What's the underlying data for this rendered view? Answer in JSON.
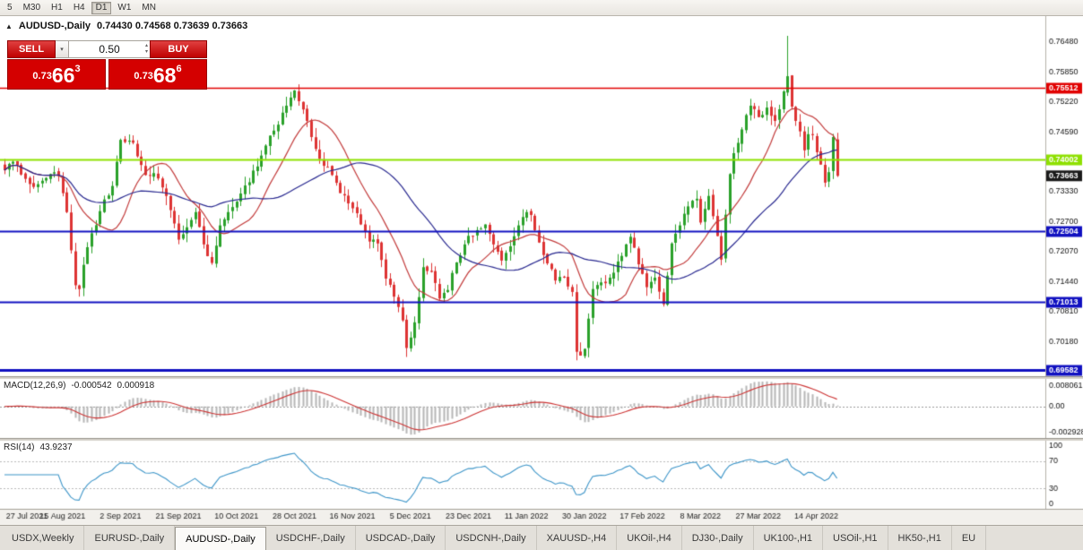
{
  "toolbar": {
    "timeframes": [
      "5",
      "M30",
      "H1",
      "H4",
      "D1",
      "W1",
      "MN"
    ],
    "active": "D1"
  },
  "chart": {
    "collapse_icon": "▲",
    "title": "AUDUSD-,Daily",
    "ohlc_text": "0.74430 0.74568 0.73639 0.73663",
    "one_click": {
      "sell_label": "SELL",
      "buy_label": "BUY",
      "volume": "0.50",
      "dropdown_icon": "▾",
      "spin_up_icon": "▴",
      "spin_down_icon": "▾",
      "sell_price": {
        "prefix": "0.73",
        "big": "66",
        "sup": "3"
      },
      "buy_price": {
        "prefix": "0.73",
        "big": "68",
        "sup": "6"
      }
    },
    "macd": {
      "title": "MACD(12,26,9)",
      "value_main": "-0.000542",
      "value_signal": "0.000918"
    },
    "rsi": {
      "title": "RSI(14)",
      "value": "43.9237"
    }
  },
  "tabs": {
    "active_index": 2,
    "items": [
      "USDX,Weekly",
      "EURUSD-,Daily",
      "AUDUSD-,Daily",
      "USDCHF-,Daily",
      "USDCAD-,Daily",
      "USDCNH-,Daily",
      "XAUUSD-,H4",
      "UKOil-,H4",
      "DJ30-,Daily",
      "UK100-,H1",
      "USOil-,H1",
      "HK50-,H1",
      "EU"
    ]
  },
  "chart_data": {
    "type": "candlestick",
    "symbol": "AUDUSD",
    "timeframe": "Daily",
    "n_candles": 202,
    "ohlc_display": {
      "open": "0.74430",
      "high": "0.74568",
      "low": "0.73639",
      "close": "0.73663"
    },
    "close_waypoints": [
      [
        0,
        0.7378
      ],
      [
        2,
        0.7396
      ],
      [
        5,
        0.736
      ],
      [
        7,
        0.7343
      ],
      [
        9,
        0.7356
      ],
      [
        11,
        0.737
      ],
      [
        13,
        0.7366
      ],
      [
        15,
        0.729
      ],
      [
        17,
        0.7136
      ],
      [
        18,
        0.7128
      ],
      [
        20,
        0.7216
      ],
      [
        23,
        0.7292
      ],
      [
        26,
        0.7345
      ],
      [
        28,
        0.7442
      ],
      [
        31,
        0.7436
      ],
      [
        34,
        0.7368
      ],
      [
        36,
        0.7372
      ],
      [
        39,
        0.7324
      ],
      [
        41,
        0.7266
      ],
      [
        42,
        0.7232
      ],
      [
        44,
        0.7258
      ],
      [
        46,
        0.729
      ],
      [
        48,
        0.7222
      ],
      [
        50,
        0.7183
      ],
      [
        52,
        0.7262
      ],
      [
        54,
        0.729
      ],
      [
        56,
        0.7312
      ],
      [
        58,
        0.7346
      ],
      [
        61,
        0.7386
      ],
      [
        63,
        0.743
      ],
      [
        66,
        0.7474
      ],
      [
        68,
        0.7514
      ],
      [
        70,
        0.7546
      ],
      [
        72,
        0.7506
      ],
      [
        74,
        0.7448
      ],
      [
        76,
        0.7402
      ],
      [
        79,
        0.7368
      ],
      [
        81,
        0.733
      ],
      [
        84,
        0.7298
      ],
      [
        86,
        0.7264
      ],
      [
        88,
        0.7228
      ],
      [
        90,
        0.7224
      ],
      [
        92,
        0.715
      ],
      [
        94,
        0.7112
      ],
      [
        96,
        0.7062
      ],
      [
        97,
        0.7004
      ],
      [
        99,
        0.7058
      ],
      [
        101,
        0.7174
      ],
      [
        103,
        0.7164
      ],
      [
        105,
        0.7108
      ],
      [
        107,
        0.7126
      ],
      [
        109,
        0.7184
      ],
      [
        111,
        0.7222
      ],
      [
        112,
        0.724
      ],
      [
        114,
        0.7252
      ],
      [
        116,
        0.7264
      ],
      [
        118,
        0.7222
      ],
      [
        120,
        0.7188
      ],
      [
        122,
        0.7218
      ],
      [
        124,
        0.7262
      ],
      [
        126,
        0.729
      ],
      [
        127,
        0.7284
      ],
      [
        129,
        0.7226
      ],
      [
        131,
        0.7182
      ],
      [
        133,
        0.7146
      ],
      [
        135,
        0.7152
      ],
      [
        137,
        0.7122
      ],
      [
        138,
        0.6996
      ],
      [
        139,
        0.6988
      ],
      [
        140,
        0.7002
      ],
      [
        142,
        0.7128
      ],
      [
        144,
        0.7142
      ],
      [
        146,
        0.7152
      ],
      [
        148,
        0.7186
      ],
      [
        150,
        0.7222
      ],
      [
        151,
        0.7238
      ],
      [
        153,
        0.718
      ],
      [
        155,
        0.7132
      ],
      [
        157,
        0.7152
      ],
      [
        159,
        0.7096
      ],
      [
        161,
        0.7224
      ],
      [
        163,
        0.7262
      ],
      [
        165,
        0.7302
      ],
      [
        167,
        0.7318
      ],
      [
        168,
        0.7268
      ],
      [
        170,
        0.7324
      ],
      [
        173,
        0.719
      ],
      [
        175,
        0.737
      ],
      [
        176,
        0.7414
      ],
      [
        178,
        0.7464
      ],
      [
        180,
        0.7514
      ],
      [
        182,
        0.749
      ],
      [
        184,
        0.751
      ],
      [
        186,
        0.7482
      ],
      [
        188,
        0.7544
      ],
      [
        189,
        0.7576
      ],
      [
        190,
        0.7512
      ],
      [
        191,
        0.7482
      ],
      [
        192,
        0.746
      ],
      [
        193,
        0.742
      ],
      [
        194,
        0.7454
      ],
      [
        195,
        0.7452
      ],
      [
        196,
        0.7416
      ],
      [
        197,
        0.739
      ],
      [
        198,
        0.7352
      ],
      [
        199,
        0.7374
      ],
      [
        200,
        0.7448
      ],
      [
        201,
        0.73663
      ]
    ],
    "spike": {
      "index": 189,
      "high": 0.7661
    },
    "last_candle": {
      "open": 0.7443,
      "high": 0.74568,
      "low": 0.73639,
      "close": 0.73663
    },
    "price_scale": {
      "min": 0.69445,
      "max": 0.77025,
      "ticks": [
        "0.76480",
        "0.75850",
        "0.75220",
        "0.74590",
        "0.73960",
        "0.73330",
        "0.72700",
        "0.72070",
        "0.71440",
        "0.70810",
        "0.70180"
      ]
    },
    "h_lines": [
      {
        "price": 0.75512,
        "label": "0.75512",
        "color": "#e10000",
        "width": 1.5
      },
      {
        "price": 0.74002,
        "label": "0.74002",
        "color": "#8ee000",
        "width": 2
      },
      {
        "price": 0.72504,
        "label": "0.72504",
        "color": "#1010c0",
        "width": 2
      },
      {
        "price": 0.71013,
        "label": "0.71013",
        "color": "#1010c0",
        "width": 2
      },
      {
        "price": 0.69582,
        "label": "0.69582",
        "color": "#1010c0",
        "width": 3
      }
    ],
    "current_price": {
      "value": 0.73663,
      "label": "0.73663",
      "bg": "#1a1a1a"
    },
    "ma": [
      {
        "period": 13,
        "color": "#c23b3b"
      },
      {
        "period": 34,
        "color": "#28288f"
      }
    ],
    "colors": {
      "up_candle": "#2aa12a",
      "down_candle": "#dd3333",
      "ma_fast": "#c23b3b",
      "ma_slow": "#28288f",
      "macd_hist": "#b6b6b6",
      "macd_signal": "#cc3333",
      "rsi_line": "#3d95c8"
    },
    "macd": {
      "params": [
        12,
        26,
        9
      ],
      "axis_top": "0.008061",
      "axis_zero": "0.00",
      "axis_bottom": "-0.002928",
      "current_main": -0.000542,
      "current_signal": 0.000918
    },
    "rsi": {
      "period": 14,
      "levels": [
        70,
        30
      ],
      "axis": [
        100,
        70,
        30,
        0
      ],
      "current": 43.9237
    },
    "x_labels": [
      {
        "i": 0,
        "t": "27 Jul 2021"
      },
      {
        "i": 14,
        "t": "15 Aug 2021"
      },
      {
        "i": 28,
        "t": "2 Sep 2021"
      },
      {
        "i": 42,
        "t": "21 Sep 2021"
      },
      {
        "i": 56,
        "t": "10 Oct 2021"
      },
      {
        "i": 70,
        "t": "28 Oct 2021"
      },
      {
        "i": 84,
        "t": "16 Nov 2021"
      },
      {
        "i": 98,
        "t": "5 Dec 2021"
      },
      {
        "i": 112,
        "t": "23 Dec 2021"
      },
      {
        "i": 126,
        "t": "11 Jan 2022"
      },
      {
        "i": 140,
        "t": "30 Jan 2022"
      },
      {
        "i": 154,
        "t": "17 Feb 2022"
      },
      {
        "i": 168,
        "t": "8 Mar 2022"
      },
      {
        "i": 182,
        "t": "27 Mar 2022"
      },
      {
        "i": 196,
        "t": "14 Apr 2022"
      }
    ]
  }
}
